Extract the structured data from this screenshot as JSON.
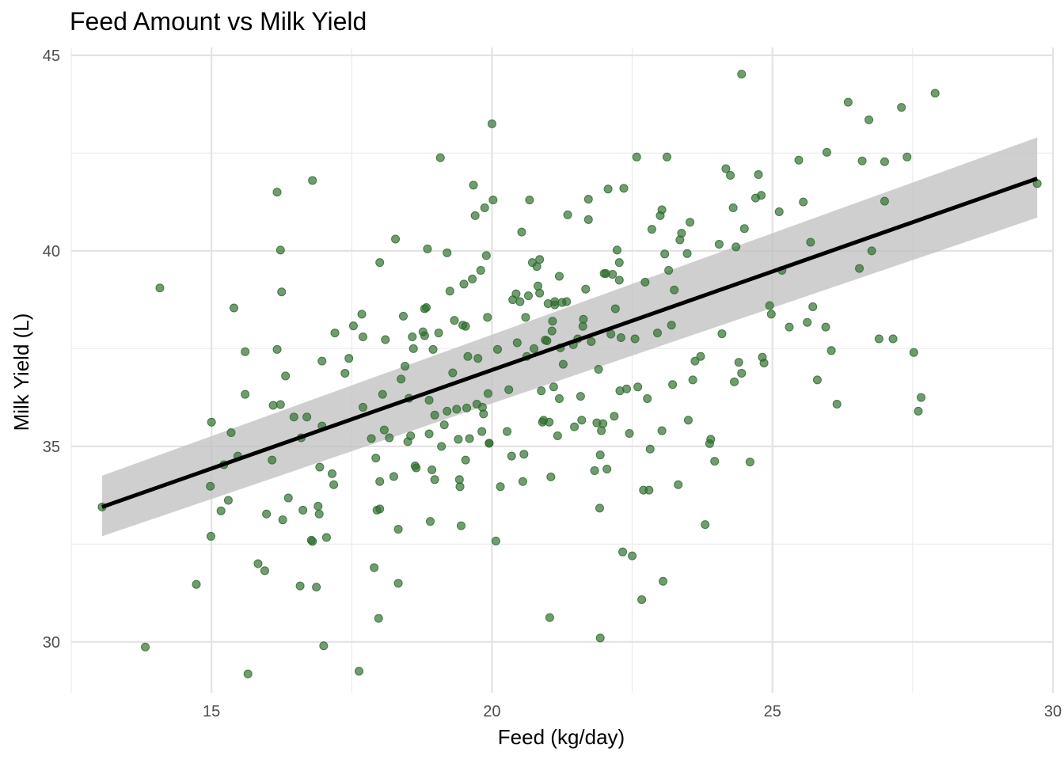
{
  "chart_data": {
    "type": "scatter",
    "title": "Feed Amount vs Milk Yield",
    "xlabel": "Feed (kg/day)",
    "ylabel": "Milk Yield (L)",
    "xlim": [
      12.5,
      30.0
    ],
    "ylim": [
      28.7,
      45.2
    ],
    "x_ticks": [
      15,
      20,
      25,
      30
    ],
    "y_ticks": [
      30,
      35,
      40,
      45
    ],
    "grid": true,
    "point_color": "#2e6b2e",
    "smooth": {
      "method": "linear regression with confidence band",
      "line_color": "#000000",
      "band_color": "#bfbfbf",
      "x": [
        13.05,
        29.72
      ],
      "y": [
        33.45,
        41.85
      ],
      "band_lower": [
        32.7,
        40.85
      ],
      "band_upper": [
        34.25,
        42.9
      ]
    },
    "series": [
      {
        "points": [
          [
            13.05,
            33.45
          ],
          [
            13.82,
            29.87
          ],
          [
            14.08,
            39.05
          ],
          [
            14.73,
            31.47
          ],
          [
            14.98,
            33.98
          ],
          [
            15.0,
            35.62
          ],
          [
            14.99,
            32.7
          ],
          [
            15.17,
            33.35
          ],
          [
            15.22,
            34.53
          ],
          [
            15.3,
            33.62
          ],
          [
            15.35,
            35.35
          ],
          [
            15.4,
            38.54
          ],
          [
            15.47,
            34.75
          ],
          [
            15.6,
            36.33
          ],
          [
            15.6,
            37.42
          ],
          [
            15.65,
            29.18
          ],
          [
            15.83,
            32.0
          ],
          [
            15.95,
            31.82
          ],
          [
            15.98,
            33.27
          ],
          [
            16.08,
            34.65
          ],
          [
            16.1,
            36.05
          ],
          [
            16.17,
            41.5
          ],
          [
            16.17,
            37.48
          ],
          [
            16.23,
            36.07
          ],
          [
            16.23,
            40.02
          ],
          [
            16.25,
            38.95
          ],
          [
            16.27,
            33.12
          ],
          [
            16.32,
            36.8
          ],
          [
            16.37,
            33.68
          ],
          [
            16.47,
            35.75
          ],
          [
            16.58,
            31.43
          ],
          [
            16.6,
            35.22
          ],
          [
            16.63,
            33.37
          ],
          [
            16.7,
            35.75
          ],
          [
            16.78,
            32.6
          ],
          [
            16.8,
            32.57
          ],
          [
            16.8,
            41.8
          ],
          [
            16.87,
            31.4
          ],
          [
            16.9,
            33.47
          ],
          [
            16.92,
            33.27
          ],
          [
            16.93,
            34.47
          ],
          [
            16.97,
            37.18
          ],
          [
            16.97,
            35.52
          ],
          [
            17.0,
            29.9
          ],
          [
            17.05,
            32.67
          ],
          [
            17.15,
            34.3
          ],
          [
            17.18,
            34.02
          ],
          [
            17.2,
            37.9
          ],
          [
            17.38,
            36.87
          ],
          [
            17.45,
            37.25
          ],
          [
            17.53,
            38.08
          ],
          [
            17.63,
            29.25
          ],
          [
            17.68,
            38.38
          ],
          [
            17.7,
            37.8
          ],
          [
            17.7,
            36.0
          ],
          [
            17.85,
            35.2
          ],
          [
            17.9,
            31.9
          ],
          [
            17.93,
            34.7
          ],
          [
            17.95,
            33.37
          ],
          [
            17.98,
            30.6
          ],
          [
            18.0,
            33.4
          ],
          [
            18.0,
            34.1
          ],
          [
            18.0,
            39.7
          ],
          [
            18.05,
            36.33
          ],
          [
            18.08,
            35.42
          ],
          [
            18.1,
            37.73
          ],
          [
            18.17,
            35.22
          ],
          [
            18.25,
            34.23
          ],
          [
            18.28,
            40.3
          ],
          [
            18.33,
            32.88
          ],
          [
            18.33,
            31.5
          ],
          [
            18.38,
            36.72
          ],
          [
            18.42,
            38.33
          ],
          [
            18.45,
            37.05
          ],
          [
            18.5,
            35.12
          ],
          [
            18.52,
            36.23
          ],
          [
            18.55,
            35.27
          ],
          [
            18.58,
            37.8
          ],
          [
            18.6,
            37.5
          ],
          [
            18.63,
            34.5
          ],
          [
            18.65,
            34.45
          ],
          [
            18.77,
            37.93
          ],
          [
            18.8,
            37.83
          ],
          [
            18.8,
            38.52
          ],
          [
            18.83,
            38.55
          ],
          [
            18.85,
            40.05
          ],
          [
            18.88,
            35.32
          ],
          [
            18.88,
            36.18
          ],
          [
            18.9,
            33.08
          ],
          [
            18.93,
            34.4
          ],
          [
            18.95,
            37.48
          ],
          [
            18.98,
            35.8
          ],
          [
            18.98,
            34.15
          ],
          [
            19.05,
            37.9
          ],
          [
            19.08,
            42.38
          ],
          [
            19.1,
            35.0
          ],
          [
            19.15,
            35.55
          ],
          [
            19.2,
            39.95
          ],
          [
            19.2,
            35.9
          ],
          [
            19.25,
            38.97
          ],
          [
            19.3,
            36.88
          ],
          [
            19.33,
            38.22
          ],
          [
            19.37,
            35.95
          ],
          [
            19.4,
            35.18
          ],
          [
            19.42,
            34.15
          ],
          [
            19.43,
            33.97
          ],
          [
            19.45,
            32.97
          ],
          [
            19.48,
            38.1
          ],
          [
            19.5,
            39.15
          ],
          [
            19.53,
            38.07
          ],
          [
            19.53,
            34.65
          ],
          [
            19.55,
            35.98
          ],
          [
            19.57,
            37.3
          ],
          [
            19.6,
            35.2
          ],
          [
            19.65,
            39.28
          ],
          [
            19.67,
            41.68
          ],
          [
            19.7,
            40.9
          ],
          [
            19.73,
            36.08
          ],
          [
            19.75,
            37.25
          ],
          [
            19.8,
            39.5
          ],
          [
            19.82,
            35.38
          ],
          [
            19.83,
            36.0
          ],
          [
            19.85,
            35.83
          ],
          [
            19.87,
            41.1
          ],
          [
            19.9,
            39.88
          ],
          [
            19.92,
            38.3
          ],
          [
            19.93,
            36.35
          ],
          [
            19.95,
            35.08
          ],
          [
            19.95,
            35.08
          ],
          [
            20.0,
            43.25
          ],
          [
            20.02,
            41.3
          ],
          [
            20.07,
            32.58
          ],
          [
            20.1,
            37.48
          ],
          [
            20.15,
            33.97
          ],
          [
            20.27,
            35.38
          ],
          [
            20.3,
            36.45
          ],
          [
            20.35,
            34.75
          ],
          [
            20.37,
            38.75
          ],
          [
            20.43,
            38.9
          ],
          [
            20.45,
            37.65
          ],
          [
            20.5,
            38.7
          ],
          [
            20.53,
            40.48
          ],
          [
            20.55,
            34.1
          ],
          [
            20.57,
            34.8
          ],
          [
            20.6,
            38.3
          ],
          [
            20.62,
            37.3
          ],
          [
            20.65,
            38.85
          ],
          [
            20.67,
            41.3
          ],
          [
            20.72,
            39.7
          ],
          [
            20.75,
            37.5
          ],
          [
            20.8,
            39.6
          ],
          [
            20.82,
            39.1
          ],
          [
            20.85,
            38.92
          ],
          [
            20.85,
            39.78
          ],
          [
            20.88,
            36.42
          ],
          [
            20.9,
            35.62
          ],
          [
            20.92,
            35.67
          ],
          [
            20.95,
            37.72
          ],
          [
            20.98,
            37.7
          ],
          [
            21.0,
            38.65
          ],
          [
            21.02,
            35.62
          ],
          [
            21.03,
            30.62
          ],
          [
            21.05,
            34.22
          ],
          [
            21.07,
            37.95
          ],
          [
            21.08,
            38.2
          ],
          [
            21.1,
            36.52
          ],
          [
            21.12,
            38.7
          ],
          [
            21.12,
            38.62
          ],
          [
            21.17,
            35.27
          ],
          [
            21.2,
            39.35
          ],
          [
            21.2,
            36.22
          ],
          [
            21.22,
            37.52
          ],
          [
            21.25,
            38.68
          ],
          [
            21.27,
            37.1
          ],
          [
            21.33,
            38.7
          ],
          [
            21.35,
            40.92
          ],
          [
            21.45,
            37.6
          ],
          [
            21.47,
            35.5
          ],
          [
            21.53,
            37.75
          ],
          [
            21.58,
            36.28
          ],
          [
            21.6,
            35.67
          ],
          [
            21.62,
            38.07
          ],
          [
            21.63,
            38.25
          ],
          [
            21.67,
            39.02
          ],
          [
            21.72,
            40.8
          ],
          [
            21.72,
            41.32
          ],
          [
            21.77,
            37.68
          ],
          [
            21.83,
            34.38
          ],
          [
            21.87,
            35.6
          ],
          [
            21.9,
            36.97
          ],
          [
            21.92,
            33.42
          ],
          [
            21.93,
            30.1
          ],
          [
            21.93,
            34.78
          ],
          [
            21.95,
            35.4
          ],
          [
            21.98,
            35.58
          ],
          [
            22.0,
            39.42
          ],
          [
            22.03,
            39.42
          ],
          [
            22.05,
            34.42
          ],
          [
            22.07,
            41.58
          ],
          [
            22.12,
            37.87
          ],
          [
            22.15,
            39.4
          ],
          [
            22.18,
            35.77
          ],
          [
            22.2,
            38.52
          ],
          [
            22.23,
            40.02
          ],
          [
            22.27,
            39.25
          ],
          [
            22.27,
            39.7
          ],
          [
            22.28,
            36.42
          ],
          [
            22.3,
            37.78
          ],
          [
            22.33,
            32.3
          ],
          [
            22.35,
            41.6
          ],
          [
            22.4,
            36.47
          ],
          [
            22.45,
            35.33
          ],
          [
            22.5,
            32.2
          ],
          [
            22.55,
            37.75
          ],
          [
            22.58,
            42.4
          ],
          [
            22.6,
            36.52
          ],
          [
            22.67,
            31.08
          ],
          [
            22.7,
            33.88
          ],
          [
            22.73,
            39.2
          ],
          [
            22.77,
            36.22
          ],
          [
            22.8,
            33.88
          ],
          [
            22.82,
            34.93
          ],
          [
            22.85,
            40.55
          ],
          [
            22.95,
            37.9
          ],
          [
            23.0,
            40.9
          ],
          [
            23.03,
            41.05
          ],
          [
            23.03,
            35.4
          ],
          [
            23.05,
            31.55
          ],
          [
            23.08,
            39.92
          ],
          [
            23.12,
            42.4
          ],
          [
            23.15,
            39.5
          ],
          [
            23.2,
            38.1
          ],
          [
            23.22,
            36.58
          ],
          [
            23.25,
            39.0
          ],
          [
            23.32,
            34.02
          ],
          [
            23.35,
            40.28
          ],
          [
            23.38,
            40.45
          ],
          [
            23.48,
            39.93
          ],
          [
            23.5,
            35.67
          ],
          [
            23.53,
            40.73
          ],
          [
            23.58,
            36.7
          ],
          [
            23.62,
            37.18
          ],
          [
            23.72,
            37.3
          ],
          [
            23.8,
            33.0
          ],
          [
            23.88,
            35.07
          ],
          [
            23.9,
            35.18
          ],
          [
            23.97,
            34.62
          ],
          [
            24.05,
            40.17
          ],
          [
            24.1,
            37.88
          ],
          [
            24.17,
            42.1
          ],
          [
            24.25,
            41.93
          ],
          [
            24.3,
            41.1
          ],
          [
            24.32,
            36.65
          ],
          [
            24.35,
            40.1
          ],
          [
            24.4,
            37.15
          ],
          [
            24.45,
            36.87
          ],
          [
            24.5,
            40.57
          ],
          [
            24.6,
            34.6
          ],
          [
            24.7,
            41.35
          ],
          [
            24.75,
            41.95
          ],
          [
            24.8,
            41.42
          ],
          [
            24.82,
            37.28
          ],
          [
            24.85,
            37.13
          ],
          [
            24.95,
            38.6
          ],
          [
            24.98,
            38.38
          ],
          [
            25.12,
            41.0
          ],
          [
            25.17,
            39.5
          ],
          [
            25.3,
            38.05
          ],
          [
            25.47,
            42.32
          ],
          [
            25.55,
            41.25
          ],
          [
            25.62,
            38.17
          ],
          [
            25.68,
            40.22
          ],
          [
            25.72,
            38.57
          ],
          [
            25.8,
            36.7
          ],
          [
            25.95,
            38.05
          ],
          [
            25.97,
            42.52
          ],
          [
            26.05,
            37.45
          ],
          [
            26.15,
            36.08
          ],
          [
            26.35,
            43.8
          ],
          [
            26.55,
            39.55
          ],
          [
            26.6,
            42.3
          ],
          [
            26.72,
            43.35
          ],
          [
            26.77,
            40.0
          ],
          [
            26.9,
            37.75
          ],
          [
            27.0,
            41.27
          ],
          [
            27.0,
            42.28
          ],
          [
            27.15,
            37.75
          ],
          [
            27.3,
            43.67
          ],
          [
            27.4,
            42.4
          ],
          [
            27.52,
            37.4
          ],
          [
            27.6,
            35.9
          ],
          [
            27.65,
            36.25
          ],
          [
            27.9,
            44.03
          ],
          [
            24.45,
            44.52
          ],
          [
            29.72,
            41.72
          ]
        ]
      }
    ]
  }
}
